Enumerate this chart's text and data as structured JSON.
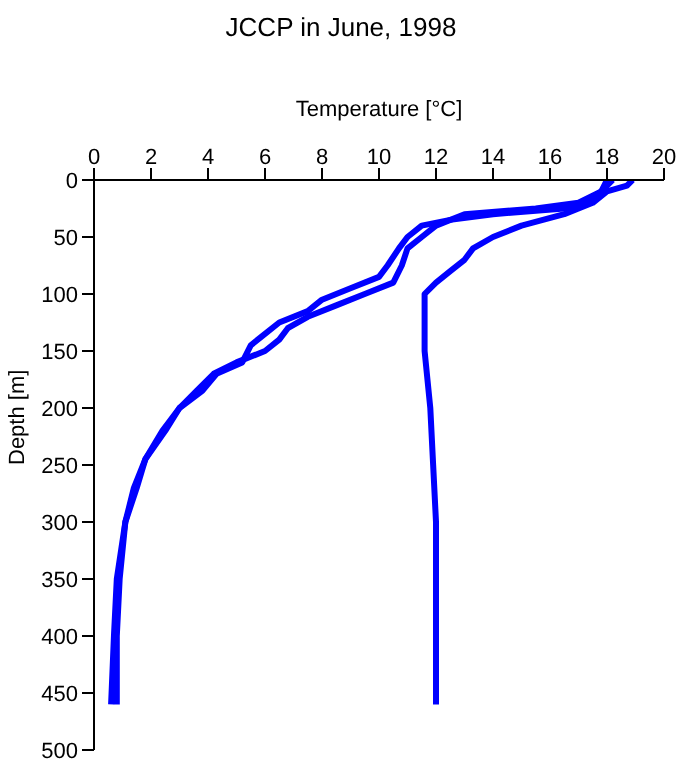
{
  "chart_data": {
    "type": "line",
    "title": "JCCP in June, 1998",
    "xlabel": "Temperature [°C]",
    "ylabel": "Depth [m]",
    "xlim": [
      0,
      20
    ],
    "xticks": [
      0,
      2,
      4,
      6,
      8,
      10,
      12,
      14,
      16,
      18,
      20
    ],
    "ylim": [
      500,
      0
    ],
    "yticks": [
      0,
      50,
      100,
      150,
      200,
      250,
      300,
      350,
      400,
      450,
      500
    ],
    "grid": false,
    "legend": false,
    "marker": "none",
    "line_style": "solid",
    "series": [
      {
        "color": "#0000ff",
        "x": [
          18.0,
          17.8,
          17.2,
          16.5,
          14.0,
          12.5,
          11.5,
          11.0,
          10.7,
          10.3,
          10.0,
          9.0,
          8.0,
          7.5,
          6.5,
          6.0,
          5.5,
          5.2,
          4.3,
          3.8,
          3.0,
          2.5,
          1.8,
          1.5,
          1.1,
          0.8,
          0.7,
          0.6
        ],
        "values": [
          0,
          10,
          20,
          25,
          30,
          35,
          40,
          50,
          60,
          75,
          85,
          95,
          105,
          115,
          125,
          135,
          145,
          160,
          170,
          185,
          200,
          220,
          245,
          270,
          300,
          350,
          400,
          460
        ]
      },
      {
        "color": "#0000ff",
        "x": [
          18.2,
          17.8,
          17.0,
          15.5,
          13.0,
          12.0,
          11.5,
          11.0,
          10.8,
          10.5,
          9.5,
          8.5,
          7.5,
          6.8,
          6.5,
          6.0,
          5.0,
          4.2,
          3.6,
          3.0,
          2.4,
          1.8,
          1.4,
          1.1,
          0.9,
          0.8,
          0.8
        ],
        "values": [
          0,
          10,
          20,
          25,
          30,
          40,
          50,
          60,
          75,
          90,
          100,
          110,
          120,
          130,
          140,
          150,
          160,
          170,
          185,
          200,
          220,
          245,
          270,
          300,
          350,
          400,
          460
        ]
      },
      {
        "color": "#0000ff",
        "x": [
          18.9,
          18.7,
          18.0,
          17.5,
          16.5,
          15.0,
          14.0,
          13.3,
          13.0,
          12.5,
          12.0,
          11.6,
          11.6,
          11.8,
          11.9,
          12.0,
          12.0,
          12.0
        ],
        "values": [
          0,
          5,
          10,
          20,
          30,
          40,
          50,
          60,
          70,
          80,
          90,
          100,
          150,
          200,
          250,
          300,
          400,
          460
        ]
      }
    ]
  }
}
